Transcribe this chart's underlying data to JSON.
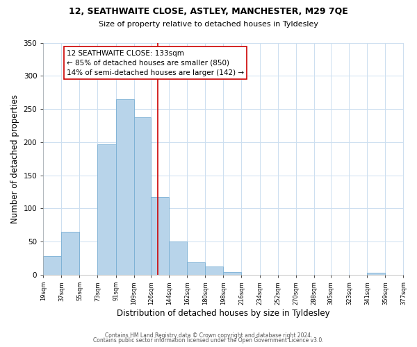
{
  "title1": "12, SEATHWAITE CLOSE, ASTLEY, MANCHESTER, M29 7QE",
  "title2": "Size of property relative to detached houses in Tyldesley",
  "xlabel": "Distribution of detached houses by size in Tyldesley",
  "ylabel": "Number of detached properties",
  "footer1": "Contains HM Land Registry data © Crown copyright and database right 2024.",
  "footer2": "Contains public sector information licensed under the Open Government Licence v3.0.",
  "bar_edges": [
    19,
    37,
    55,
    73,
    91,
    109,
    126,
    144,
    162,
    180,
    198,
    216,
    234,
    252,
    270,
    288,
    305,
    323,
    341,
    359,
    377
  ],
  "bar_heights": [
    28,
    65,
    0,
    197,
    265,
    237,
    117,
    50,
    19,
    12,
    4,
    0,
    0,
    0,
    0,
    0,
    0,
    0,
    3,
    0,
    0
  ],
  "bar_color": "#b8d4ea",
  "bar_edgecolor": "#7aafd4",
  "vline_x": 133,
  "vline_color": "#cc0000",
  "annotation_title": "12 SEATHWAITE CLOSE: 133sqm",
  "annotation_line1": "← 85% of detached houses are smaller (850)",
  "annotation_line2": "14% of semi-detached houses are larger (142) →",
  "annotation_box_color": "#ffffff",
  "annotation_box_edgecolor": "#cc0000",
  "xlim": [
    19,
    377
  ],
  "ylim": [
    0,
    350
  ],
  "yticks": [
    0,
    50,
    100,
    150,
    200,
    250,
    300,
    350
  ],
  "xtick_labels": [
    "19sqm",
    "37sqm",
    "55sqm",
    "73sqm",
    "91sqm",
    "109sqm",
    "126sqm",
    "144sqm",
    "162sqm",
    "180sqm",
    "198sqm",
    "216sqm",
    "234sqm",
    "252sqm",
    "270sqm",
    "288sqm",
    "305sqm",
    "323sqm",
    "341sqm",
    "359sqm",
    "377sqm"
  ],
  "xtick_positions": [
    19,
    37,
    55,
    73,
    91,
    109,
    126,
    144,
    162,
    180,
    198,
    216,
    234,
    252,
    270,
    288,
    305,
    323,
    341,
    359,
    377
  ],
  "title1_fontsize": 9,
  "title2_fontsize": 8,
  "xlabel_fontsize": 8.5,
  "ylabel_fontsize": 8.5,
  "xtick_fontsize": 6,
  "ytick_fontsize": 7.5,
  "footer_fontsize": 5.5,
  "ann_fontsize": 7.5
}
